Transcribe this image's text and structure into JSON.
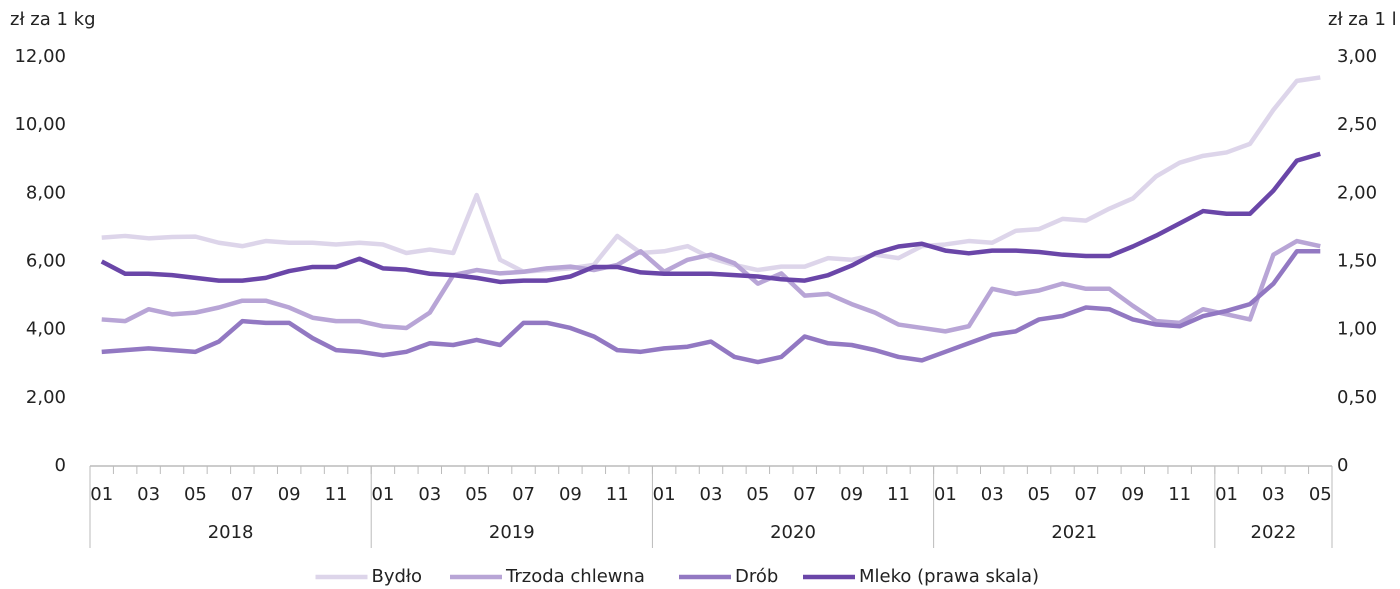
{
  "chart_data": {
    "type": "line",
    "ylabel": "zł za 1 kg",
    "y2label": "zł za 1 l",
    "categories": [
      "01",
      null,
      "03",
      null,
      "05",
      null,
      "07",
      null,
      "09",
      null,
      "11",
      null,
      "01",
      null,
      "03",
      null,
      "05",
      null,
      "07",
      null,
      "09",
      null,
      "11",
      null,
      "01",
      null,
      "03",
      null,
      "05",
      null,
      "07",
      null,
      "09",
      null,
      "11",
      null,
      "01",
      null,
      "03",
      null,
      "05",
      null,
      "07",
      null,
      "09",
      null,
      "11",
      null,
      "01",
      null,
      "03",
      null,
      "05"
    ],
    "years": [
      "2018",
      "2019",
      "2020",
      "2021",
      "2022"
    ],
    "series": [
      {
        "name": "Bydło",
        "color": "#ddd5ea",
        "values": [
          6.7,
          6.75,
          6.68,
          6.72,
          6.73,
          6.55,
          6.45,
          6.6,
          6.55,
          6.55,
          6.5,
          6.55,
          6.5,
          6.25,
          6.35,
          6.25,
          7.95,
          6.05,
          5.7,
          5.75,
          5.8,
          5.9,
          6.75,
          6.25,
          6.3,
          6.45,
          6.1,
          5.9,
          5.75,
          5.85,
          5.85,
          6.1,
          6.05,
          6.2,
          6.1,
          6.45,
          6.5,
          6.6,
          6.55,
          6.9,
          6.95,
          7.25,
          7.2,
          7.55,
          7.85,
          8.5,
          8.9,
          9.1,
          9.2,
          9.45,
          10.45,
          11.3,
          11.4
        ]
      },
      {
        "name": "Trzoda chlewna",
        "color": "#b8a5d6",
        "values": [
          4.3,
          4.25,
          4.6,
          4.45,
          4.5,
          4.65,
          4.85,
          4.85,
          4.65,
          4.35,
          4.25,
          4.25,
          4.1,
          4.05,
          4.5,
          5.6,
          5.75,
          5.65,
          5.7,
          5.8,
          5.85,
          5.75,
          5.9,
          6.3,
          5.7,
          6.05,
          6.2,
          5.95,
          5.35,
          5.65,
          5.0,
          5.05,
          4.75,
          4.5,
          4.15,
          4.05,
          3.95,
          4.1,
          5.2,
          5.05,
          5.15,
          5.35,
          5.2,
          5.2,
          4.7,
          4.25,
          4.2,
          4.6,
          4.45,
          4.3,
          6.2,
          6.6,
          6.45
        ]
      },
      {
        "name": "Drób",
        "color": "#9278c2",
        "values": [
          3.35,
          3.4,
          3.45,
          3.4,
          3.35,
          3.65,
          4.25,
          4.2,
          4.2,
          3.75,
          3.4,
          3.35,
          3.25,
          3.35,
          3.6,
          3.55,
          3.7,
          3.55,
          4.2,
          4.2,
          4.05,
          3.8,
          3.4,
          3.35,
          3.45,
          3.5,
          3.65,
          3.2,
          3.05,
          3.2,
          3.8,
          3.6,
          3.55,
          3.4,
          3.2,
          3.1,
          3.35,
          3.6,
          3.85,
          3.95,
          4.3,
          4.4,
          4.65,
          4.6,
          4.3,
          4.15,
          4.1,
          4.4,
          4.55,
          4.75,
          5.35,
          6.3,
          6.3
        ]
      },
      {
        "name": "Mleko (prawa skala)",
        "color": "#6a46a8",
        "axis": "y2",
        "values": [
          1.5,
          1.41,
          1.41,
          1.4,
          1.38,
          1.36,
          1.36,
          1.38,
          1.43,
          1.46,
          1.46,
          1.52,
          1.45,
          1.44,
          1.41,
          1.4,
          1.38,
          1.35,
          1.36,
          1.36,
          1.39,
          1.46,
          1.46,
          1.42,
          1.41,
          1.41,
          1.41,
          1.4,
          1.39,
          1.37,
          1.36,
          1.4,
          1.47,
          1.56,
          1.61,
          1.63,
          1.58,
          1.56,
          1.58,
          1.58,
          1.57,
          1.55,
          1.54,
          1.54,
          1.61,
          1.69,
          1.78,
          1.87,
          1.85,
          1.85,
          2.02,
          2.24,
          2.29
        ]
      }
    ],
    "ylim": [
      0,
      12
    ],
    "yticks": [
      0,
      {
        "value": 2,
        "label": "2,00"
      },
      {
        "value": 4,
        "label": "4,00"
      },
      {
        "value": 6,
        "label": "6,00"
      },
      {
        "value": 8,
        "label": "8,00"
      },
      {
        "value": 10,
        "label": "10,00"
      },
      {
        "value": 12,
        "label": "12,00"
      }
    ],
    "y2lim": [
      0,
      3
    ],
    "y2ticks": [
      0,
      {
        "value": 0.5,
        "label": "0,50"
      },
      {
        "value": 1,
        "label": "1,00"
      },
      {
        "value": 1.5,
        "label": "1,50"
      },
      {
        "value": 2,
        "label": "2,00"
      },
      {
        "value": 2.5,
        "label": "2,50"
      },
      {
        "value": 3,
        "label": "3,00"
      }
    ],
    "grid": false,
    "legend": "bottom"
  }
}
